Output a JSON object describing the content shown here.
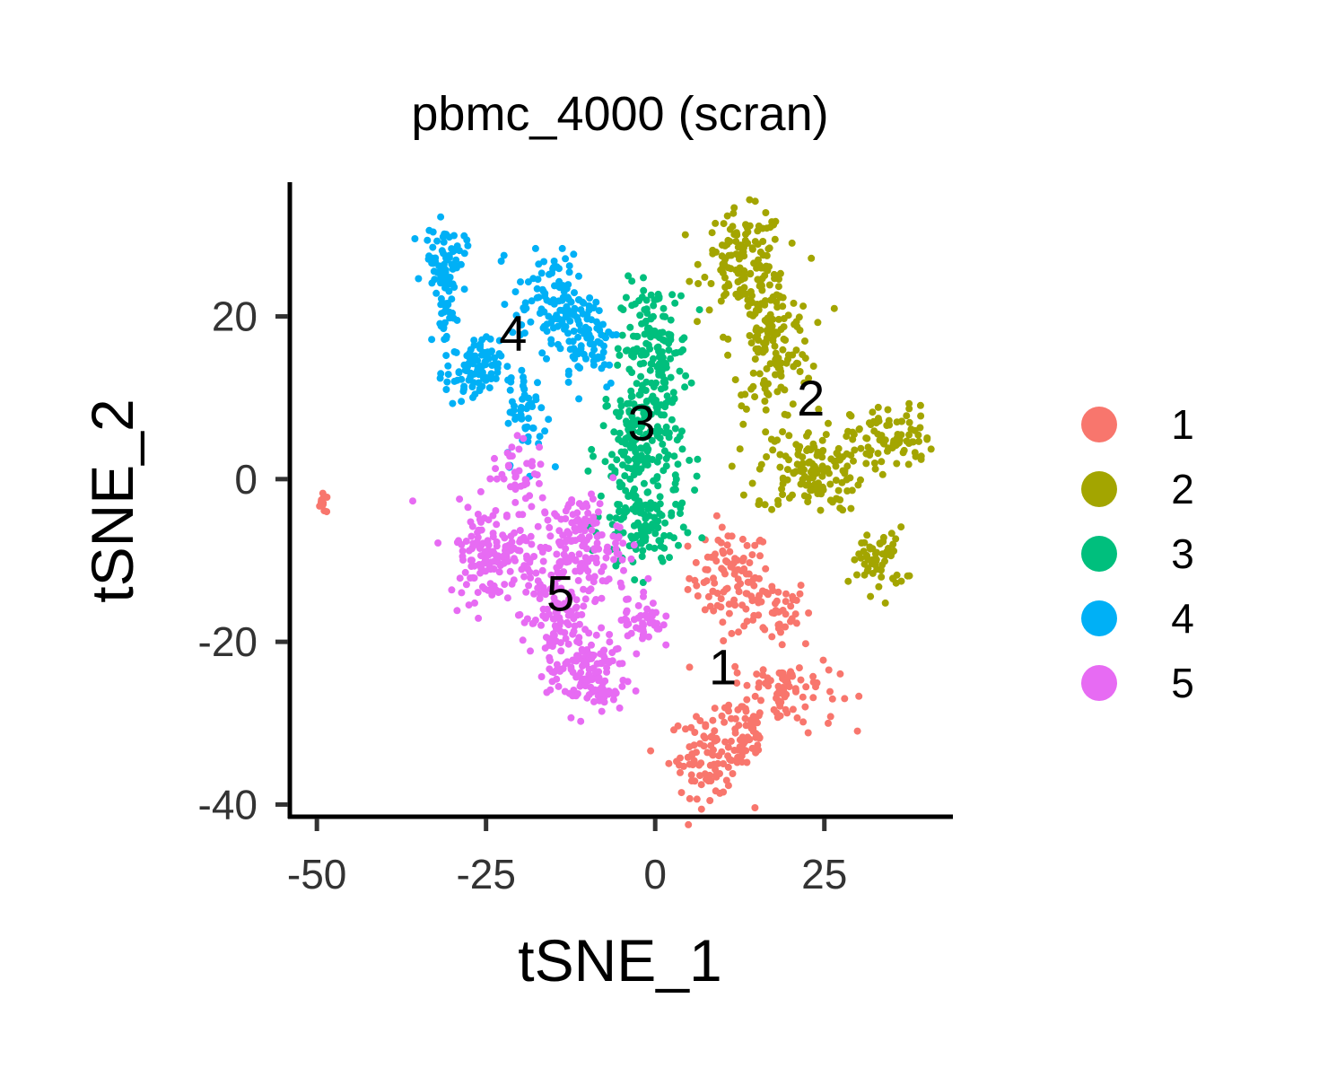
{
  "chart_data": {
    "type": "scatter",
    "title": "pbmc_4000 (scran)",
    "xlabel": "tSNE_1",
    "ylabel": "tSNE_2",
    "xlim": [
      -54,
      44
    ],
    "ylim": [
      -41.5,
      36.5
    ],
    "grid": false,
    "legend_position": "right",
    "x_ticks": [
      -50,
      -25,
      0,
      25
    ],
    "x_tick_labels": [
      "-50",
      "-25",
      "0",
      "25"
    ],
    "y_ticks": [
      -40,
      -20,
      0,
      20
    ],
    "y_tick_labels": [
      "-40",
      "-20",
      "0",
      "20"
    ],
    "series": [
      {
        "name": "1",
        "color": "#F8766D",
        "label_position": [
          10,
          -23
        ],
        "clusters": [
          {
            "center": [
              11,
              -12
            ],
            "spread": [
              3,
              3
            ],
            "n": 90
          },
          {
            "center": [
              17,
              -16
            ],
            "spread": [
              3,
              2
            ],
            "n": 50
          },
          {
            "center": [
              19,
              -26
            ],
            "spread": [
              4,
              2.5
            ],
            "n": 90
          },
          {
            "center": [
              8,
              -34
            ],
            "spread": [
              3,
              2.5
            ],
            "n": 90
          },
          {
            "center": [
              13,
              -32
            ],
            "spread": [
              2,
              2.5
            ],
            "n": 50
          },
          {
            "center": [
              -49,
              -3
            ],
            "spread": [
              0.5,
              0.6
            ],
            "n": 12
          }
        ]
      },
      {
        "name": "2",
        "color": "#A3A500",
        "label_position": [
          23,
          10
        ],
        "clusters": [
          {
            "center": [
              13,
              27
            ],
            "spread": [
              3,
              3
            ],
            "n": 120
          },
          {
            "center": [
              17,
              17
            ],
            "spread": [
              3,
              5
            ],
            "n": 160
          },
          {
            "center": [
              23,
              1
            ],
            "spread": [
              4,
              2.5
            ],
            "n": 140
          },
          {
            "center": [
              35,
              5
            ],
            "spread": [
              3,
              2
            ],
            "n": 80
          },
          {
            "center": [
              33,
              -10
            ],
            "spread": [
              2,
              2
            ],
            "n": 60
          }
        ]
      },
      {
        "name": "3",
        "color": "#00BF7D",
        "label_position": [
          -2,
          7
        ],
        "clusters": [
          {
            "center": [
              0,
              16
            ],
            "spread": [
              2.5,
              4
            ],
            "n": 140
          },
          {
            "center": [
              -2,
              4
            ],
            "spread": [
              3,
              5
            ],
            "n": 200
          },
          {
            "center": [
              -2,
              -6
            ],
            "spread": [
              3,
              3
            ],
            "n": 100
          }
        ]
      },
      {
        "name": "4",
        "color": "#00B0F6",
        "label_position": [
          -21,
          18
        ],
        "clusters": [
          {
            "center": [
              -31,
              27
            ],
            "spread": [
              1.5,
              2
            ],
            "n": 70
          },
          {
            "center": [
              -31,
              21
            ],
            "spread": [
              0.8,
              2.5
            ],
            "n": 30
          },
          {
            "center": [
              -27,
              13
            ],
            "spread": [
              2,
              2
            ],
            "n": 90
          },
          {
            "center": [
              -15,
              22
            ],
            "spread": [
              3,
              3
            ],
            "n": 110
          },
          {
            "center": [
              -10,
              17
            ],
            "spread": [
              2.5,
              3
            ],
            "n": 70
          },
          {
            "center": [
              -19,
              8
            ],
            "spread": [
              1.5,
              3
            ],
            "n": 50
          }
        ]
      },
      {
        "name": "5",
        "color": "#E76BF3",
        "label_position": [
          -14,
          -14
        ],
        "clusters": [
          {
            "center": [
              -24,
              -9
            ],
            "spread": [
              3.5,
              3
            ],
            "n": 150
          },
          {
            "center": [
              -11,
              -8
            ],
            "spread": [
              3,
              3
            ],
            "n": 150
          },
          {
            "center": [
              -15,
              -17
            ],
            "spread": [
              2.5,
              3
            ],
            "n": 100
          },
          {
            "center": [
              -10,
              -24
            ],
            "spread": [
              3,
              2.5
            ],
            "n": 130
          },
          {
            "center": [
              -2,
              -17
            ],
            "spread": [
              1.5,
              2
            ],
            "n": 50
          },
          {
            "center": [
              -20,
              1
            ],
            "spread": [
              2,
              2
            ],
            "n": 40
          }
        ]
      }
    ]
  }
}
